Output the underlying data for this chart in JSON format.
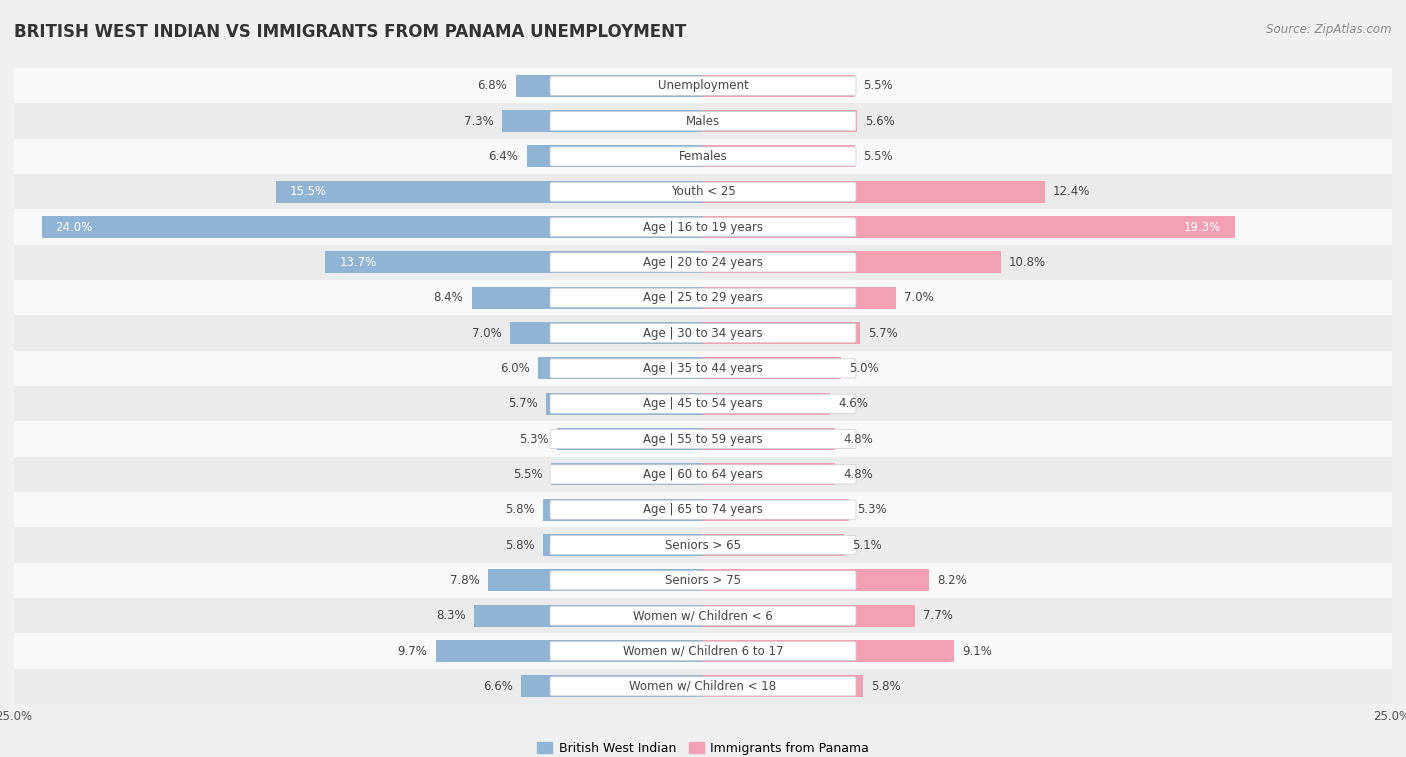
{
  "title": "BRITISH WEST INDIAN VS IMMIGRANTS FROM PANAMA UNEMPLOYMENT",
  "source": "Source: ZipAtlas.com",
  "categories": [
    "Unemployment",
    "Males",
    "Females",
    "Youth < 25",
    "Age | 16 to 19 years",
    "Age | 20 to 24 years",
    "Age | 25 to 29 years",
    "Age | 30 to 34 years",
    "Age | 35 to 44 years",
    "Age | 45 to 54 years",
    "Age | 55 to 59 years",
    "Age | 60 to 64 years",
    "Age | 65 to 74 years",
    "Seniors > 65",
    "Seniors > 75",
    "Women w/ Children < 6",
    "Women w/ Children 6 to 17",
    "Women w/ Children < 18"
  ],
  "left_values": [
    6.8,
    7.3,
    6.4,
    15.5,
    24.0,
    13.7,
    8.4,
    7.0,
    6.0,
    5.7,
    5.3,
    5.5,
    5.8,
    5.8,
    7.8,
    8.3,
    9.7,
    6.6
  ],
  "right_values": [
    5.5,
    5.6,
    5.5,
    12.4,
    19.3,
    10.8,
    7.0,
    5.7,
    5.0,
    4.6,
    4.8,
    4.8,
    5.3,
    5.1,
    8.2,
    7.7,
    9.1,
    5.8
  ],
  "left_color": "#92b4d4",
  "right_color": "#f4a0b4",
  "left_label": "British West Indian",
  "right_label": "Immigrants from Panama",
  "xlim": 25.0,
  "bg_color": "#f0f0f0",
  "row_color_light": "#f9f9f9",
  "row_color_dark": "#ebebeb",
  "title_fontsize": 12,
  "source_fontsize": 8.5,
  "cat_fontsize": 8.5,
  "value_fontsize": 8.5,
  "axis_fontsize": 8.5
}
